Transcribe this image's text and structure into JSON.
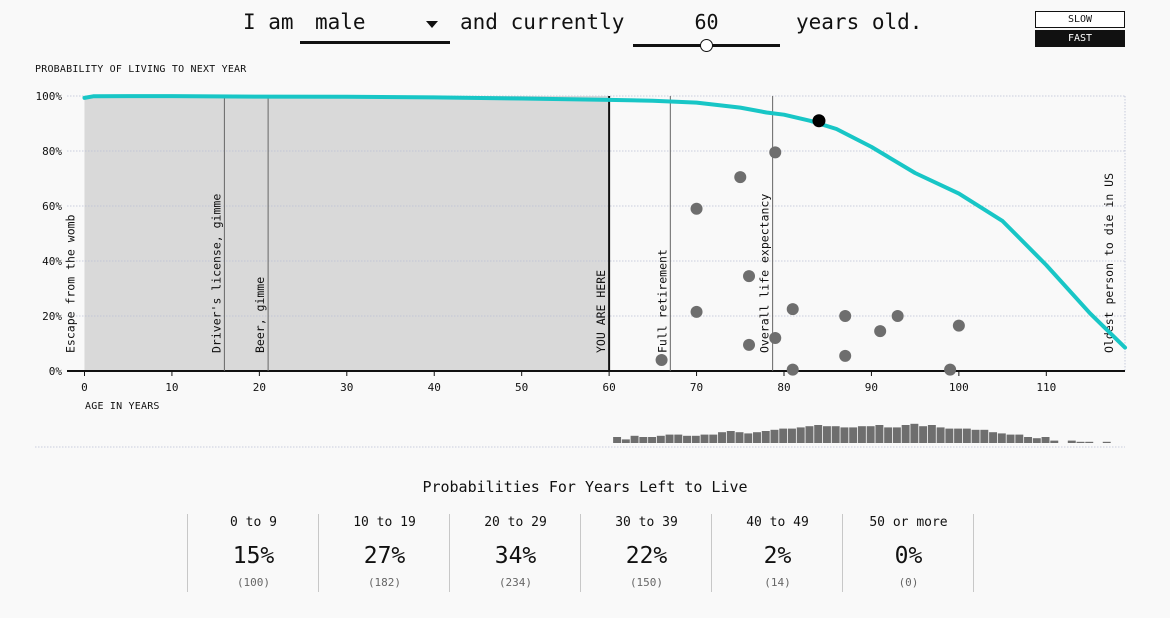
{
  "controls": {
    "prefix": "I am",
    "sex": "male",
    "middle": "and currently",
    "age": "60",
    "suffix": "years old.",
    "age_fraction": 0.5,
    "speed_slow": "SLOW",
    "speed_fast": "FAST",
    "speed_selected": "FAST"
  },
  "chart_data": {
    "type": "line",
    "ylabel": "PROBABILITY OF LIVING TO NEXT YEAR",
    "xlabel": "AGE IN YEARS",
    "xlim": [
      -2,
      119
    ],
    "ylim": [
      0,
      100
    ],
    "x_ticks": [
      0,
      10,
      20,
      30,
      40,
      50,
      60,
      70,
      80,
      90,
      100,
      110
    ],
    "y_ticks": [
      {
        "value": 0,
        "label": "0%"
      },
      {
        "value": 20,
        "label": "20%"
      },
      {
        "value": 40,
        "label": "40%"
      },
      {
        "value": 60,
        "label": "60%"
      },
      {
        "value": 80,
        "label": "80%"
      },
      {
        "value": 100,
        "label": "100%"
      }
    ],
    "grid": true,
    "line_color": "#18c6c6",
    "curve": {
      "x": [
        0,
        1,
        5,
        10,
        20,
        30,
        40,
        50,
        60,
        65,
        70,
        75,
        78,
        80,
        83,
        86,
        90,
        95,
        100,
        105,
        110,
        115,
        119
      ],
      "y": [
        99.3,
        99.9,
        99.95,
        99.95,
        99.8,
        99.7,
        99.5,
        99.1,
        98.6,
        98.3,
        97.6,
        95.8,
        94.0,
        93.2,
        91.0,
        88.0,
        81.5,
        72.0,
        64.5,
        54.5,
        38.5,
        21.0,
        8.5
      ]
    },
    "current_point": {
      "x": 84,
      "y": 91
    },
    "shaded_range": [
      0,
      60
    ],
    "markers": [
      {
        "age": 0,
        "label": "Escape from the womb"
      },
      {
        "age": 16,
        "label": "Driver's license, gimme"
      },
      {
        "age": 21,
        "label": "Beer, gimme"
      },
      {
        "age": 60,
        "label": "YOU ARE HERE"
      },
      {
        "age": 67,
        "label": "Full retirement"
      },
      {
        "age": 78.7,
        "label": "Overall life expectancy"
      },
      {
        "age": 119,
        "label": "Oldest person to die in US"
      }
    ],
    "dots": [
      {
        "x": 66,
        "y": 4
      },
      {
        "x": 70,
        "y": 21.5
      },
      {
        "x": 70,
        "y": 59
      },
      {
        "x": 75,
        "y": 70.5
      },
      {
        "x": 76,
        "y": 9.5
      },
      {
        "x": 76,
        "y": 34.5
      },
      {
        "x": 79,
        "y": 12
      },
      {
        "x": 79,
        "y": 79.5
      },
      {
        "x": 81,
        "y": 0.5
      },
      {
        "x": 81,
        "y": 22.5
      },
      {
        "x": 87,
        "y": 20
      },
      {
        "x": 87,
        "y": 5.5
      },
      {
        "x": 91,
        "y": 14.5
      },
      {
        "x": 93,
        "y": 20
      },
      {
        "x": 99,
        "y": 0.5
      },
      {
        "x": 100,
        "y": 16.5
      }
    ],
    "histogram": {
      "start_age": 60,
      "counts": [
        5,
        3,
        6,
        5,
        5,
        6,
        7,
        7,
        6,
        6,
        7,
        7,
        9,
        10,
        9,
        8,
        9,
        10,
        11,
        12,
        12,
        13,
        14,
        15,
        14,
        14,
        13,
        13,
        14,
        14,
        15,
        13,
        13,
        15,
        16,
        14,
        15,
        13,
        12,
        12,
        12,
        11,
        11,
        9,
        8,
        7,
        7,
        5,
        4,
        5,
        2,
        0,
        2,
        1,
        1,
        0,
        1
      ]
    }
  },
  "stats": {
    "title": "Probabilities For Years Left to Live",
    "buckets": [
      {
        "label": "0 to 9",
        "pct": "15%",
        "count": "(100)"
      },
      {
        "label": "10 to 19",
        "pct": "27%",
        "count": "(182)"
      },
      {
        "label": "20 to 29",
        "pct": "34%",
        "count": "(234)"
      },
      {
        "label": "30 to 39",
        "pct": "22%",
        "count": "(150)"
      },
      {
        "label": "40 to 49",
        "pct": "2%",
        "count": "(14)"
      },
      {
        "label": "50 or more",
        "pct": "0%",
        "count": "(0)"
      }
    ]
  }
}
